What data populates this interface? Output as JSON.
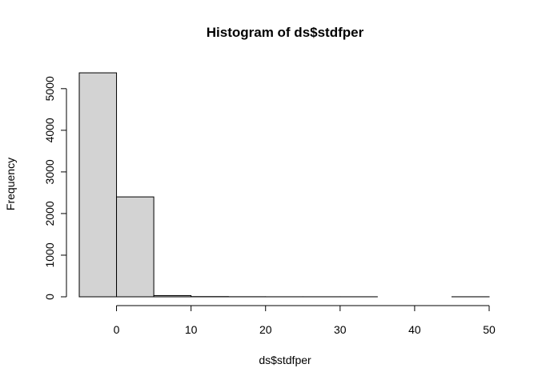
{
  "chart_data": {
    "type": "bar",
    "title": "Histogram of ds$stdfper",
    "xlabel": "ds$stdfper",
    "ylabel": "Frequency",
    "xlim": [
      -5,
      50
    ],
    "ylim": [
      0,
      5400
    ],
    "x_ticks": [
      0,
      10,
      20,
      30,
      40,
      50
    ],
    "y_ticks": [
      0,
      1000,
      2000,
      3000,
      4000,
      5000
    ],
    "bins": [
      {
        "start": -5,
        "end": 0,
        "count": 5380
      },
      {
        "start": 0,
        "end": 5,
        "count": 2400
      },
      {
        "start": 5,
        "end": 10,
        "count": 30
      },
      {
        "start": 10,
        "end": 15,
        "count": 5
      },
      {
        "start": 15,
        "end": 20,
        "count": 2
      },
      {
        "start": 20,
        "end": 25,
        "count": 1
      },
      {
        "start": 25,
        "end": 30,
        "count": 1
      },
      {
        "start": 30,
        "end": 35,
        "count": 1
      },
      {
        "start": 35,
        "end": 40,
        "count": 0
      },
      {
        "start": 40,
        "end": 45,
        "count": 0
      },
      {
        "start": 45,
        "end": 50,
        "count": 1
      }
    ],
    "grid": false,
    "legend": "none"
  }
}
